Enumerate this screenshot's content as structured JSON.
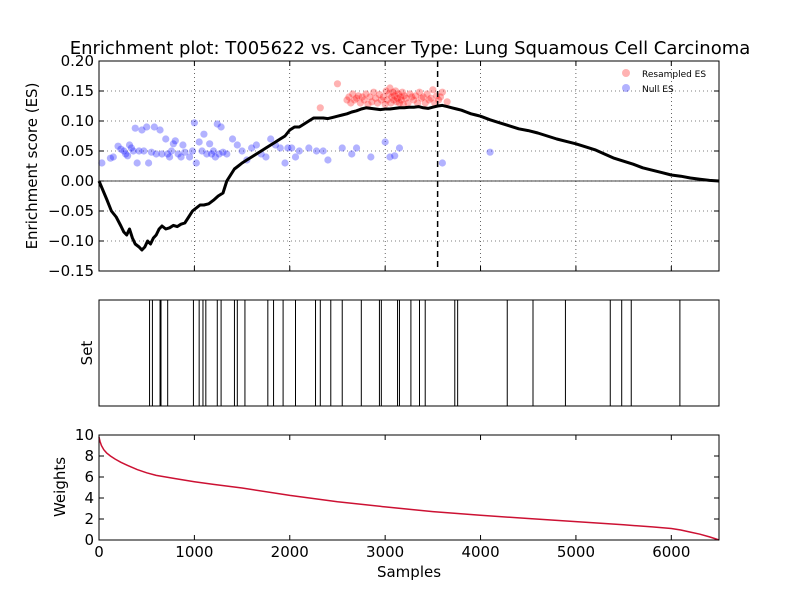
{
  "chart_data": [
    {
      "type": "line",
      "title": "Enrichment plot: T005622 vs. Cancer Type: Lung Squamous Cell Carcinoma",
      "xlabel": "",
      "ylabel": "Enrichment score (ES)",
      "xlim": [
        0,
        6500
      ],
      "ylim": [
        -0.15,
        0.2
      ],
      "yticks": [
        -0.15,
        -0.1,
        -0.05,
        0.0,
        0.05,
        0.1,
        0.15,
        0.2
      ],
      "ytick_labels": [
        "−0.15",
        "−0.10",
        "−0.05",
        "0.00",
        "0.05",
        "0.10",
        "0.15",
        "0.20"
      ],
      "xticks": [
        0,
        1000,
        2000,
        3000,
        4000,
        5000,
        6000
      ],
      "grid": true,
      "legend_position": "top-right",
      "running_es": {
        "x": [
          0,
          80,
          130,
          180,
          230,
          260,
          290,
          320,
          350,
          380,
          420,
          450,
          480,
          510,
          540,
          570,
          600,
          630,
          660,
          700,
          740,
          780,
          820,
          860,
          900,
          940,
          980,
          1020,
          1060,
          1100,
          1150,
          1200,
          1250,
          1300,
          1340,
          1380,
          1420,
          1460,
          1500,
          1550,
          1600,
          1650,
          1700,
          1750,
          1800,
          1850,
          1900,
          1950,
          2000,
          2050,
          2100,
          2150,
          2200,
          2250,
          2300,
          2350,
          2400,
          2450,
          2500,
          2550,
          2600,
          2650,
          2700,
          2750,
          2800,
          2850,
          2900,
          2950,
          3000,
          3050,
          3100,
          3150,
          3200,
          3250,
          3300,
          3350,
          3400,
          3450,
          3500,
          3550,
          3600,
          3650,
          3700,
          3750,
          3800,
          3850,
          3900,
          3950,
          4000,
          4100,
          4200,
          4300,
          4400,
          4500,
          4600,
          4700,
          4800,
          4900,
          5000,
          5100,
          5200,
          5300,
          5400,
          5500,
          5600,
          5700,
          5800,
          5900,
          6000,
          6100,
          6200,
          6300,
          6400,
          6500
        ],
        "y": [
          0.0,
          -0.03,
          -0.05,
          -0.06,
          -0.075,
          -0.085,
          -0.09,
          -0.08,
          -0.095,
          -0.105,
          -0.11,
          -0.115,
          -0.11,
          -0.1,
          -0.105,
          -0.095,
          -0.09,
          -0.08,
          -0.075,
          -0.08,
          -0.078,
          -0.074,
          -0.076,
          -0.072,
          -0.07,
          -0.06,
          -0.05,
          -0.045,
          -0.04,
          -0.04,
          -0.038,
          -0.032,
          -0.025,
          -0.02,
          0.0,
          0.01,
          0.02,
          0.025,
          0.03,
          0.035,
          0.04,
          0.045,
          0.05,
          0.055,
          0.06,
          0.065,
          0.07,
          0.075,
          0.085,
          0.09,
          0.09,
          0.095,
          0.1,
          0.105,
          0.105,
          0.105,
          0.104,
          0.106,
          0.108,
          0.11,
          0.112,
          0.115,
          0.117,
          0.12,
          0.122,
          0.121,
          0.12,
          0.119,
          0.12,
          0.12,
          0.121,
          0.122,
          0.122,
          0.123,
          0.123,
          0.124,
          0.122,
          0.121,
          0.123,
          0.125,
          0.126,
          0.124,
          0.122,
          0.12,
          0.118,
          0.115,
          0.112,
          0.11,
          0.108,
          0.102,
          0.097,
          0.092,
          0.087,
          0.084,
          0.08,
          0.075,
          0.07,
          0.066,
          0.062,
          0.057,
          0.052,
          0.045,
          0.038,
          0.033,
          0.028,
          0.022,
          0.018,
          0.014,
          0.01,
          0.008,
          0.005,
          0.003,
          0.001,
          0.0
        ]
      },
      "es_marker_x": 3550,
      "zero_line": 0.0,
      "series": [
        {
          "name": "Resampled ES",
          "color": "#ff0000",
          "points": [
            [
              2320,
              0.122
            ],
            [
              2500,
              0.162
            ],
            [
              2600,
              0.135
            ],
            [
              2620,
              0.14
            ],
            [
              2640,
              0.13
            ],
            [
              2660,
              0.145
            ],
            [
              2680,
              0.135
            ],
            [
              2700,
              0.138
            ],
            [
              2720,
              0.142
            ],
            [
              2740,
              0.13
            ],
            [
              2760,
              0.14
            ],
            [
              2780,
              0.135
            ],
            [
              2800,
              0.145
            ],
            [
              2820,
              0.128
            ],
            [
              2840,
              0.14
            ],
            [
              2860,
              0.132
            ],
            [
              2880,
              0.148
            ],
            [
              2900,
              0.138
            ],
            [
              2920,
              0.13
            ],
            [
              2940,
              0.144
            ],
            [
              2960,
              0.135
            ],
            [
              2980,
              0.14
            ],
            [
              3000,
              0.128
            ],
            [
              3010,
              0.15
            ],
            [
              3020,
              0.135
            ],
            [
              3040,
              0.145
            ],
            [
              3050,
              0.155
            ],
            [
              3060,
              0.13
            ],
            [
              3070,
              0.14
            ],
            [
              3080,
              0.148
            ],
            [
              3090,
              0.135
            ],
            [
              3100,
              0.142
            ],
            [
              3110,
              0.15
            ],
            [
              3120,
              0.132
            ],
            [
              3130,
              0.138
            ],
            [
              3140,
              0.145
            ],
            [
              3150,
              0.13
            ],
            [
              3160,
              0.14
            ],
            [
              3170,
              0.135
            ],
            [
              3180,
              0.148
            ],
            [
              3190,
              0.128
            ],
            [
              3200,
              0.142
            ],
            [
              3220,
              0.138
            ],
            [
              3240,
              0.13
            ],
            [
              3260,
              0.145
            ],
            [
              3280,
              0.14
            ],
            [
              3300,
              0.135
            ],
            [
              3320,
              0.142
            ],
            [
              3340,
              0.13
            ],
            [
              3360,
              0.148
            ],
            [
              3380,
              0.138
            ],
            [
              3400,
              0.14
            ],
            [
              3420,
              0.13
            ],
            [
              3440,
              0.145
            ],
            [
              3460,
              0.135
            ],
            [
              3480,
              0.138
            ],
            [
              3500,
              0.152
            ],
            [
              3520,
              0.13
            ],
            [
              3540,
              0.142
            ],
            [
              3560,
              0.135
            ],
            [
              3580,
              0.14
            ],
            [
              3600,
              0.148
            ],
            [
              3650,
              0.132
            ]
          ]
        },
        {
          "name": "Null ES",
          "color": "#0000ff",
          "points": [
            [
              30,
              0.03
            ],
            [
              120,
              0.038
            ],
            [
              150,
              0.04
            ],
            [
              200,
              0.058
            ],
            [
              230,
              0.053
            ],
            [
              260,
              0.05
            ],
            [
              280,
              0.045
            ],
            [
              300,
              0.042
            ],
            [
              320,
              0.06
            ],
            [
              340,
              0.055
            ],
            [
              360,
              0.05
            ],
            [
              380,
              0.088
            ],
            [
              400,
              0.03
            ],
            [
              420,
              0.05
            ],
            [
              450,
              0.085
            ],
            [
              470,
              0.05
            ],
            [
              500,
              0.09
            ],
            [
              520,
              0.03
            ],
            [
              550,
              0.048
            ],
            [
              580,
              0.09
            ],
            [
              600,
              0.045
            ],
            [
              640,
              0.085
            ],
            [
              660,
              0.045
            ],
            [
              700,
              0.07
            ],
            [
              720,
              0.045
            ],
            [
              740,
              0.04
            ],
            [
              760,
              0.05
            ],
            [
              780,
              0.062
            ],
            [
              800,
              0.067
            ],
            [
              830,
              0.045
            ],
            [
              860,
              0.04
            ],
            [
              880,
              0.06
            ],
            [
              900,
              0.048
            ],
            [
              950,
              0.04
            ],
            [
              980,
              0.05
            ],
            [
              1000,
              0.097
            ],
            [
              1020,
              0.03
            ],
            [
              1050,
              0.065
            ],
            [
              1080,
              0.05
            ],
            [
              1100,
              0.078
            ],
            [
              1130,
              0.045
            ],
            [
              1160,
              0.062
            ],
            [
              1180,
              0.045
            ],
            [
              1200,
              0.05
            ],
            [
              1220,
              0.04
            ],
            [
              1240,
              0.095
            ],
            [
              1260,
              0.045
            ],
            [
              1280,
              0.09
            ],
            [
              1300,
              0.048
            ],
            [
              1340,
              0.045
            ],
            [
              1400,
              0.07
            ],
            [
              1450,
              0.06
            ],
            [
              1500,
              0.05
            ],
            [
              1550,
              0.035
            ],
            [
              1600,
              0.055
            ],
            [
              1650,
              0.06
            ],
            [
              1700,
              0.045
            ],
            [
              1750,
              0.04
            ],
            [
              1800,
              0.07
            ],
            [
              1850,
              0.06
            ],
            [
              1900,
              0.055
            ],
            [
              1950,
              0.03
            ],
            [
              1980,
              0.055
            ],
            [
              2020,
              0.055
            ],
            [
              2060,
              0.04
            ],
            [
              2100,
              0.05
            ],
            [
              2200,
              0.055
            ],
            [
              2280,
              0.05
            ],
            [
              2350,
              0.05
            ],
            [
              2400,
              0.035
            ],
            [
              2550,
              0.055
            ],
            [
              2650,
              0.045
            ],
            [
              2700,
              0.055
            ],
            [
              2850,
              0.04
            ],
            [
              3000,
              0.065
            ],
            [
              3050,
              0.04
            ],
            [
              3100,
              0.042
            ],
            [
              3150,
              0.055
            ],
            [
              3600,
              0.03
            ],
            [
              4100,
              0.048
            ]
          ]
        }
      ]
    },
    {
      "type": "line",
      "title": "",
      "xlabel": "",
      "ylabel": "Set",
      "xlim": [
        0,
        6500
      ],
      "hits": [
        530,
        560,
        640,
        650,
        720,
        990,
        1050,
        1090,
        1120,
        1240,
        1280,
        1420,
        1450,
        1530,
        1770,
        1830,
        1930,
        2060,
        2270,
        2320,
        2430,
        2550,
        2750,
        2940,
        2960,
        3130,
        3150,
        3270,
        3360,
        3420,
        3730,
        3760,
        4280,
        4550,
        4890,
        5360,
        5480,
        5580,
        6090
      ]
    },
    {
      "type": "line",
      "title": "",
      "xlabel": "Samples",
      "ylabel": "Weights",
      "xlim": [
        0,
        6500
      ],
      "ylim": [
        0,
        10
      ],
      "yticks": [
        0,
        2,
        4,
        6,
        8,
        10
      ],
      "xticks": [
        0,
        1000,
        2000,
        3000,
        4000,
        5000,
        6000
      ],
      "xtick_labels": [
        "0",
        "1000",
        "2000",
        "3000",
        "4000",
        "5000",
        "6000"
      ],
      "grid": false,
      "series": [
        {
          "color": "#cc1133",
          "x": [
            0,
            10,
            25,
            50,
            80,
            120,
            170,
            230,
            300,
            400,
            500,
            600,
            700,
            800,
            1000,
            1200,
            1500,
            2000,
            2500,
            3000,
            3500,
            4000,
            4500,
            5000,
            5500,
            5800,
            6000,
            6100,
            6200,
            6300,
            6400,
            6450,
            6500
          ],
          "y": [
            9.8,
            9.4,
            9.0,
            8.6,
            8.3,
            8.0,
            7.7,
            7.4,
            7.1,
            6.7,
            6.4,
            6.15,
            6.0,
            5.85,
            5.55,
            5.3,
            4.95,
            4.25,
            3.65,
            3.15,
            2.7,
            2.35,
            2.05,
            1.75,
            1.45,
            1.25,
            1.1,
            0.95,
            0.75,
            0.55,
            0.3,
            0.15,
            0.0
          ]
        }
      ]
    }
  ]
}
